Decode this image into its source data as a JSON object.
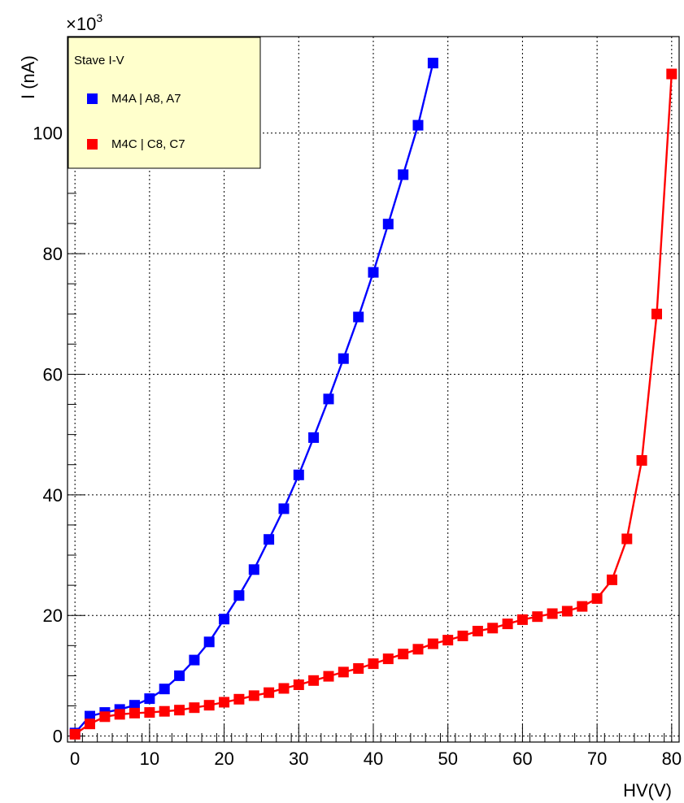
{
  "chart_data": {
    "type": "line",
    "xlabel": "HV(V)",
    "ylabel": "I (nA)",
    "y_multiplier_label": "×10",
    "y_multiplier_exponent": "3",
    "xlim": [
      -1,
      81
    ],
    "ylim": [
      -1,
      116
    ],
    "x_ticks": [
      0,
      10,
      20,
      30,
      40,
      50,
      60,
      70,
      80
    ],
    "y_ticks": [
      0,
      20,
      40,
      60,
      80,
      100
    ],
    "grid": true,
    "legend": {
      "title": "Stave I-V",
      "position": "top-left",
      "background": "#ffffcc"
    },
    "series": [
      {
        "name": "M4A | A8, A7",
        "color": "#0000ff",
        "x": [
          0,
          2,
          4,
          6,
          8,
          10,
          12,
          14,
          16,
          18,
          20,
          22,
          24,
          26,
          28,
          30,
          32,
          34,
          36,
          38,
          40,
          42,
          44,
          46,
          48
        ],
        "y": [
          0.5,
          3.3,
          3.9,
          4.4,
          5.1,
          6.2,
          7.8,
          10.0,
          12.6,
          15.6,
          19.4,
          23.3,
          27.6,
          32.6,
          37.7,
          43.3,
          49.5,
          55.9,
          62.6,
          69.5,
          76.9,
          84.9,
          93.1,
          101.3,
          111.6
        ]
      },
      {
        "name": "M4C | C8, C7",
        "color": "#ff0000",
        "x": [
          0,
          2,
          4,
          6,
          8,
          10,
          12,
          14,
          16,
          18,
          20,
          22,
          24,
          26,
          28,
          30,
          32,
          34,
          36,
          38,
          40,
          42,
          44,
          46,
          48,
          50,
          52,
          54,
          56,
          58,
          60,
          62,
          64,
          66,
          68,
          70,
          72,
          74,
          76,
          78,
          80
        ],
        "y": [
          0.3,
          2.0,
          3.2,
          3.6,
          3.8,
          3.9,
          4.1,
          4.3,
          4.7,
          5.1,
          5.6,
          6.1,
          6.7,
          7.2,
          7.9,
          8.5,
          9.2,
          9.9,
          10.6,
          11.2,
          12.0,
          12.8,
          13.6,
          14.4,
          15.3,
          15.9,
          16.6,
          17.4,
          17.9,
          18.6,
          19.3,
          19.8,
          20.3,
          20.7,
          21.5,
          22.8,
          25.9,
          32.7,
          45.7,
          70.0,
          109.8
        ]
      }
    ]
  }
}
